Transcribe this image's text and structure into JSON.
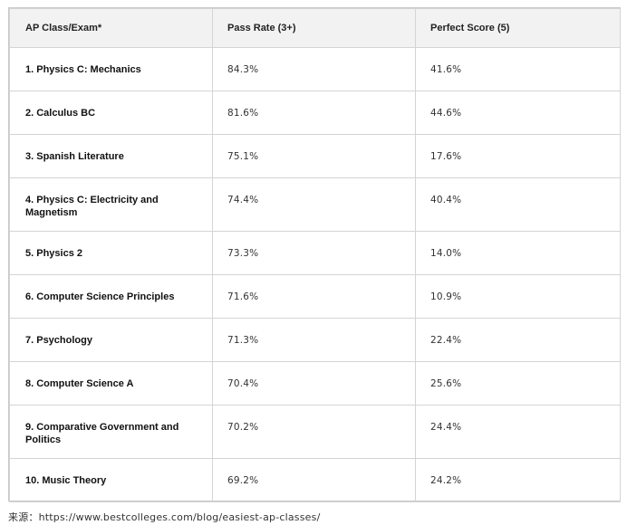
{
  "table": {
    "headers": [
      "AP Class/Exam*",
      "Pass Rate (3+)",
      "Perfect Score (5)"
    ],
    "rows": [
      {
        "name": "1. Physics C: Mechanics",
        "pass": "84.3%",
        "perfect": "41.6%"
      },
      {
        "name": "2. Calculus BC",
        "pass": "81.6%",
        "perfect": "44.6%"
      },
      {
        "name": "3. Spanish Literature",
        "pass": "75.1%",
        "perfect": "17.6%"
      },
      {
        "name": "4. Physics C: Electricity and Magnetism",
        "pass": "74.4%",
        "perfect": "40.4%"
      },
      {
        "name": "5. Physics 2",
        "pass": "73.3%",
        "perfect": "14.0%"
      },
      {
        "name": "6. Computer Science Principles",
        "pass": "71.6%",
        "perfect": "10.9%"
      },
      {
        "name": "7. Psychology",
        "pass": "71.3%",
        "perfect": "22.4%"
      },
      {
        "name": "8. Computer Science A",
        "pass": "70.4%",
        "perfect": "25.6%"
      },
      {
        "name": "9. Comparative Government and Politics",
        "pass": "70.2%",
        "perfect": "24.4%"
      },
      {
        "name": "10. Music Theory",
        "pass": "69.2%",
        "perfect": "24.2%"
      }
    ]
  },
  "source": "来源：https://www.bestcolleges.com/blog/easiest-ap-classes/"
}
